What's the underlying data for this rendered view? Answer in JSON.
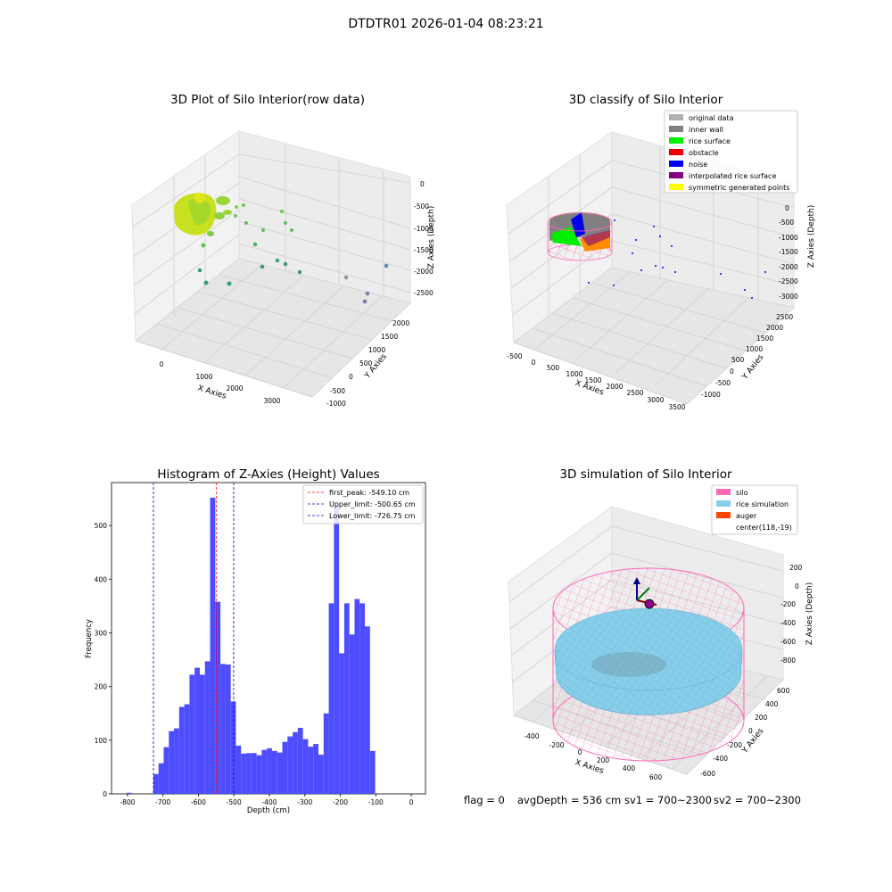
{
  "figure": {
    "suptitle": "DTDTR01 2026-01-04 08:23:21",
    "footer": {
      "flag": "flag = 0",
      "avg_depth": "avgDepth = 536 cm",
      "sv1": "sv1 = 700~2300",
      "sv2": "sv2 = 700~2300"
    }
  },
  "colors": {
    "hist_bar": "#4d4dff",
    "first_peak": "#ff0000",
    "limits": "#0000cc",
    "silo": "#ff69b4",
    "rice": "#87ceeb",
    "auger": "#ff4500",
    "axis_text": "#000000"
  },
  "chart_data": [
    {
      "type": "scatter",
      "projection": "3d",
      "title": "3D Plot of Silo Interior(row data)",
      "xlabel": "X Axies",
      "ylabel": "Y Axies",
      "zlabel": "Z Axies (Depth)",
      "x_ticks": [
        "0",
        "1000",
        "2000",
        "3000"
      ],
      "y_ticks": [
        "-1000",
        "-500",
        "0",
        "500",
        "1000",
        "1500",
        "2000"
      ],
      "z_ticks": [
        "-2500",
        "-2000",
        "-1500",
        "-1000",
        "-500",
        "0"
      ],
      "xlim": [
        -500,
        3600
      ],
      "ylim": [
        -1000,
        2200
      ],
      "zlim": [
        -2700,
        100
      ]
    },
    {
      "type": "scatter",
      "projection": "3d",
      "title": "3D classify of Silo Interior",
      "xlabel": "X Axies",
      "ylabel": "Y Axies",
      "zlabel": "Z Axies (Depth)",
      "x_ticks": [
        "-500",
        "0",
        "500",
        "1000",
        "1500",
        "2000",
        "2500",
        "3000",
        "3500"
      ],
      "y_ticks": [
        "-1000",
        "-500",
        "0",
        "500",
        "1000",
        "1500",
        "2000",
        "2500"
      ],
      "z_ticks": [
        "-3000",
        "-2500",
        "-2000",
        "-1500",
        "-1000",
        "-500",
        "0"
      ],
      "legend": [
        {
          "label": "original data",
          "color": "#b0b0b0"
        },
        {
          "label": "inner wall",
          "color": "#808080"
        },
        {
          "label": "rice surface",
          "color": "#00ee00"
        },
        {
          "label": "obstacle",
          "color": "#ee0000"
        },
        {
          "label": "noise",
          "color": "#0000ee"
        },
        {
          "label": "interpolated rice surface",
          "color": "#800080"
        },
        {
          "label": "symmetric generated points",
          "color": "#ffff00"
        }
      ],
      "legend_position": "top-right"
    },
    {
      "type": "bar",
      "title": "Histogram of Z-Axies (Height) Values",
      "xlabel": "Depth (cm)",
      "ylabel": "Frequency",
      "xlim": [
        -845,
        40
      ],
      "ylim": [
        0,
        580
      ],
      "x_ticks": [
        -800,
        -700,
        -600,
        -500,
        -400,
        -300,
        -200,
        -100,
        0
      ],
      "y_ticks": [
        0,
        100,
        200,
        300,
        400,
        500
      ],
      "bin_start": -727,
      "bin_width": 14.54,
      "values": [
        37,
        57,
        87,
        117,
        122,
        162,
        167,
        222,
        235,
        222,
        247,
        552,
        358,
        242,
        241,
        172,
        90,
        75,
        76,
        76,
        72,
        82,
        85,
        80,
        77,
        97,
        107,
        115,
        123,
        102,
        88,
        93,
        73,
        150,
        355,
        537,
        262,
        355,
        297,
        363,
        355,
        312,
        80
      ],
      "outlier_bar": {
        "x": -803,
        "width": 14.54,
        "value": 2
      },
      "lines": [
        {
          "label": "first_peak: -549.10 cm",
          "x": -549.1,
          "color": "#ff0000"
        },
        {
          "label": "Upper_limit: -500.65 cm",
          "x": -500.65,
          "color": "#0000cc"
        },
        {
          "label": "Lower_limit: -726.75 cm",
          "x": -726.75,
          "color": "#0000cc"
        }
      ],
      "legend_position": "top-right"
    },
    {
      "type": "scatter",
      "projection": "3d",
      "title": "3D simulation of Silo Interior",
      "xlabel": "X Axies",
      "ylabel": "Y Axies",
      "zlabel": "Z Axies (Depth)",
      "x_ticks": [
        "-400",
        "-200",
        "0",
        "200",
        "400",
        "600"
      ],
      "y_ticks": [
        "-600",
        "-400",
        "-200",
        "0",
        "200",
        "400",
        "600"
      ],
      "z_ticks": [
        "-800",
        "-600",
        "-400",
        "-200",
        "0",
        "200"
      ],
      "legend": [
        {
          "label": "silo",
          "color": "#ff69b4"
        },
        {
          "label": "rice simulation",
          "color": "#87ceeb"
        },
        {
          "label": "auger",
          "color": "#ff4500"
        },
        {
          "label": "center(118,-19)",
          "color": ""
        }
      ],
      "legend_position": "top-right"
    }
  ]
}
